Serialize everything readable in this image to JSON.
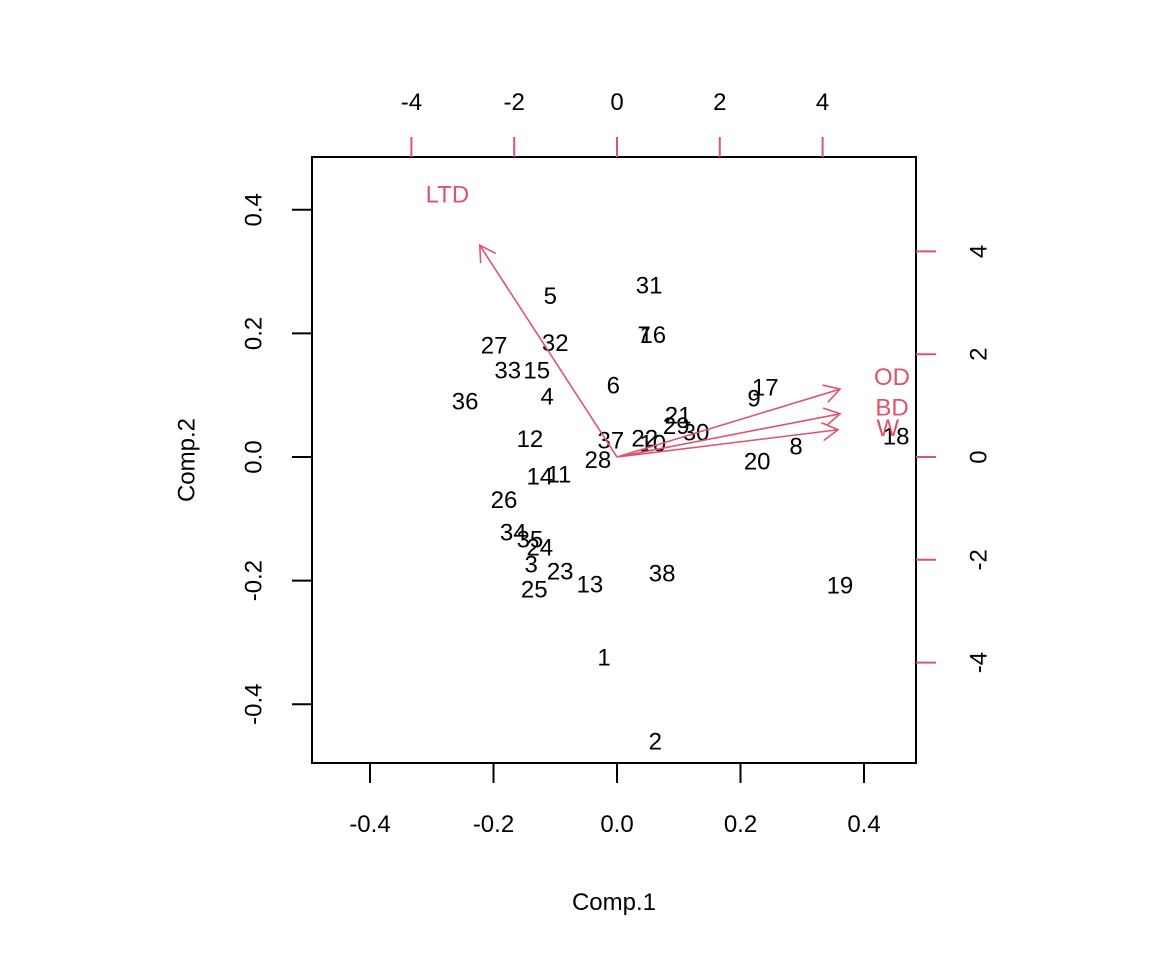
{
  "chart_data": {
    "type": "scatter",
    "subtype": "biplot",
    "title": "",
    "xlabel": "Comp.1",
    "ylabel": "Comp.2",
    "xlim": [
      -0.49,
      0.49
    ],
    "ylim": [
      -0.49,
      0.49
    ],
    "x_ticks": [
      "-0.4",
      "-0.2",
      "0.0",
      "0.2",
      "0.4"
    ],
    "x_tick_values": [
      -0.4,
      -0.2,
      0.0,
      0.2,
      0.4
    ],
    "y_ticks": [
      "-0.4",
      "-0.2",
      "0.0",
      "0.2",
      "0.4"
    ],
    "y_tick_values": [
      -0.4,
      -0.2,
      0.0,
      0.2,
      0.4
    ],
    "top_ticks": [
      "-4",
      "-2",
      "0",
      "2",
      "4"
    ],
    "top_tick_values": [
      -4,
      -2,
      0,
      2,
      4
    ],
    "right_ticks": [
      "-4",
      "-2",
      "0",
      "2",
      "4"
    ],
    "right_tick_values": [
      -4,
      -2,
      0,
      2,
      4
    ],
    "secondary_axis_color": "#DF536B",
    "grid": false,
    "points": [
      {
        "label": "1",
        "x": -0.021,
        "y": -0.325
      },
      {
        "label": "2",
        "x": 0.062,
        "y": -0.461
      },
      {
        "label": "3",
        "x": -0.139,
        "y": -0.175
      },
      {
        "label": "4",
        "x": -0.113,
        "y": 0.097
      },
      {
        "label": "5",
        "x": -0.108,
        "y": 0.26
      },
      {
        "label": "6",
        "x": -0.006,
        "y": 0.115
      },
      {
        "label": "7",
        "x": 0.044,
        "y": 0.197
      },
      {
        "label": "8",
        "x": 0.29,
        "y": 0.016
      },
      {
        "label": "9",
        "x": 0.222,
        "y": 0.094
      },
      {
        "label": "10",
        "x": 0.058,
        "y": 0.021
      },
      {
        "label": "11",
        "x": -0.094,
        "y": -0.029
      },
      {
        "label": "12",
        "x": -0.141,
        "y": 0.028
      },
      {
        "label": "13",
        "x": -0.044,
        "y": -0.207
      },
      {
        "label": "14",
        "x": -0.125,
        "y": -0.032
      },
      {
        "label": "15",
        "x": -0.13,
        "y": 0.139
      },
      {
        "label": "16",
        "x": 0.058,
        "y": 0.197
      },
      {
        "label": "17",
        "x": 0.24,
        "y": 0.112
      },
      {
        "label": "18",
        "x": 0.452,
        "y": 0.032
      },
      {
        "label": "19",
        "x": 0.361,
        "y": -0.209
      },
      {
        "label": "20",
        "x": 0.227,
        "y": -0.008
      },
      {
        "label": "21",
        "x": 0.099,
        "y": 0.066
      },
      {
        "label": "22",
        "x": 0.045,
        "y": 0.029
      },
      {
        "label": "23",
        "x": -0.092,
        "y": -0.186
      },
      {
        "label": "24",
        "x": -0.125,
        "y": -0.147
      },
      {
        "label": "25",
        "x": -0.134,
        "y": -0.215
      },
      {
        "label": "26",
        "x": -0.183,
        "y": -0.07
      },
      {
        "label": "27",
        "x": -0.199,
        "y": 0.18
      },
      {
        "label": "28",
        "x": -0.031,
        "y": -0.006
      },
      {
        "label": "29",
        "x": 0.096,
        "y": 0.049
      },
      {
        "label": "30",
        "x": 0.128,
        "y": 0.039
      },
      {
        "label": "31",
        "x": 0.052,
        "y": 0.277
      },
      {
        "label": "32",
        "x": -0.1,
        "y": 0.184
      },
      {
        "label": "33",
        "x": -0.177,
        "y": 0.139
      },
      {
        "label": "34",
        "x": -0.168,
        "y": -0.123
      },
      {
        "label": "35",
        "x": -0.141,
        "y": -0.134
      },
      {
        "label": "36",
        "x": -0.246,
        "y": 0.089
      },
      {
        "label": "37",
        "x": -0.01,
        "y": 0.026
      },
      {
        "label": "38",
        "x": 0.073,
        "y": -0.189
      }
    ],
    "loadings": [
      {
        "name": "LTD",
        "x": -2.67,
        "y": 4.12,
        "label_x": -3.3,
        "label_y": 5.1
      },
      {
        "name": "OD",
        "x": 4.34,
        "y": 1.32,
        "label_x": 5.35,
        "label_y": 1.55
      },
      {
        "name": "BD",
        "x": 4.34,
        "y": 0.84,
        "label_x": 5.35,
        "label_y": 0.95
      },
      {
        "name": "W",
        "x": 4.3,
        "y": 0.53,
        "label_x": 5.27,
        "label_y": 0.55
      }
    ]
  }
}
